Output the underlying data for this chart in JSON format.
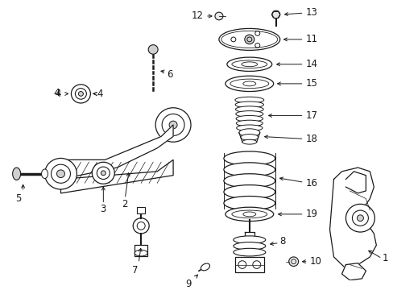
{
  "bg_color": "#ffffff",
  "line_color": "#1a1a1a",
  "fig_width": 4.89,
  "fig_height": 3.6,
  "dpi": 100,
  "label_fontsize": 8.5,
  "arrow_lw": 0.7,
  "part_lw": 0.9
}
